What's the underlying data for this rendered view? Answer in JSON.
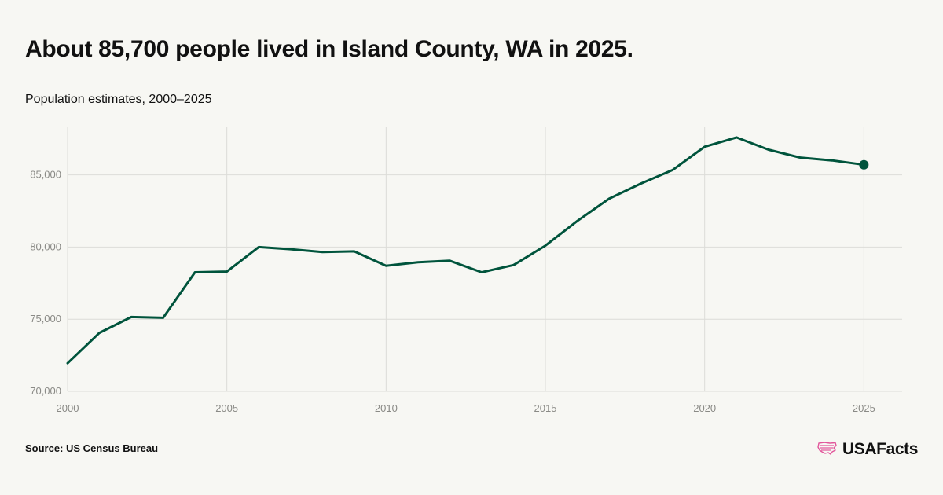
{
  "title": "About 85,700 people lived in Island County, WA in 2025.",
  "subtitle": "Population estimates, 2000–2025",
  "source": "Source: US Census Bureau",
  "logo_text": "USAFacts",
  "colors": {
    "line": "#00543c",
    "grid": "#dcdcd8",
    "background": "#f7f7f3",
    "logo_accent": "#e2569b"
  },
  "chart_data": {
    "type": "line",
    "title": "About 85,700 people lived in Island County, WA in 2025.",
    "subtitle": "Population estimates, 2000–2025",
    "x": [
      2000,
      2001,
      2002,
      2003,
      2004,
      2005,
      2006,
      2007,
      2008,
      2009,
      2010,
      2011,
      2012,
      2013,
      2014,
      2015,
      2016,
      2017,
      2018,
      2019,
      2020,
      2021,
      2022,
      2023,
      2024,
      2025
    ],
    "series": [
      {
        "values": [
          71950,
          74050,
          75150,
          75100,
          78250,
          78300,
          80000,
          79850,
          79650,
          79700,
          78700,
          78950,
          79050,
          78250,
          78750,
          80100,
          81800,
          83350,
          84400,
          85350,
          86950,
          87600,
          86750,
          86200,
          86000,
          85700
        ]
      }
    ],
    "xlim": [
      2000,
      2026.2
    ],
    "ylim": [
      70000,
      88300
    ],
    "x_ticks": [
      2000,
      2005,
      2010,
      2015,
      2020,
      2025
    ],
    "y_ticks": [
      70000,
      75000,
      80000,
      85000
    ],
    "x_tick_labels": [
      "2000",
      "2005",
      "2010",
      "2015",
      "2020",
      "2025"
    ],
    "y_tick_labels": [
      "70,000",
      "75,000",
      "80,000",
      "85,000"
    ],
    "grid": true,
    "endpoint_marker": true
  }
}
